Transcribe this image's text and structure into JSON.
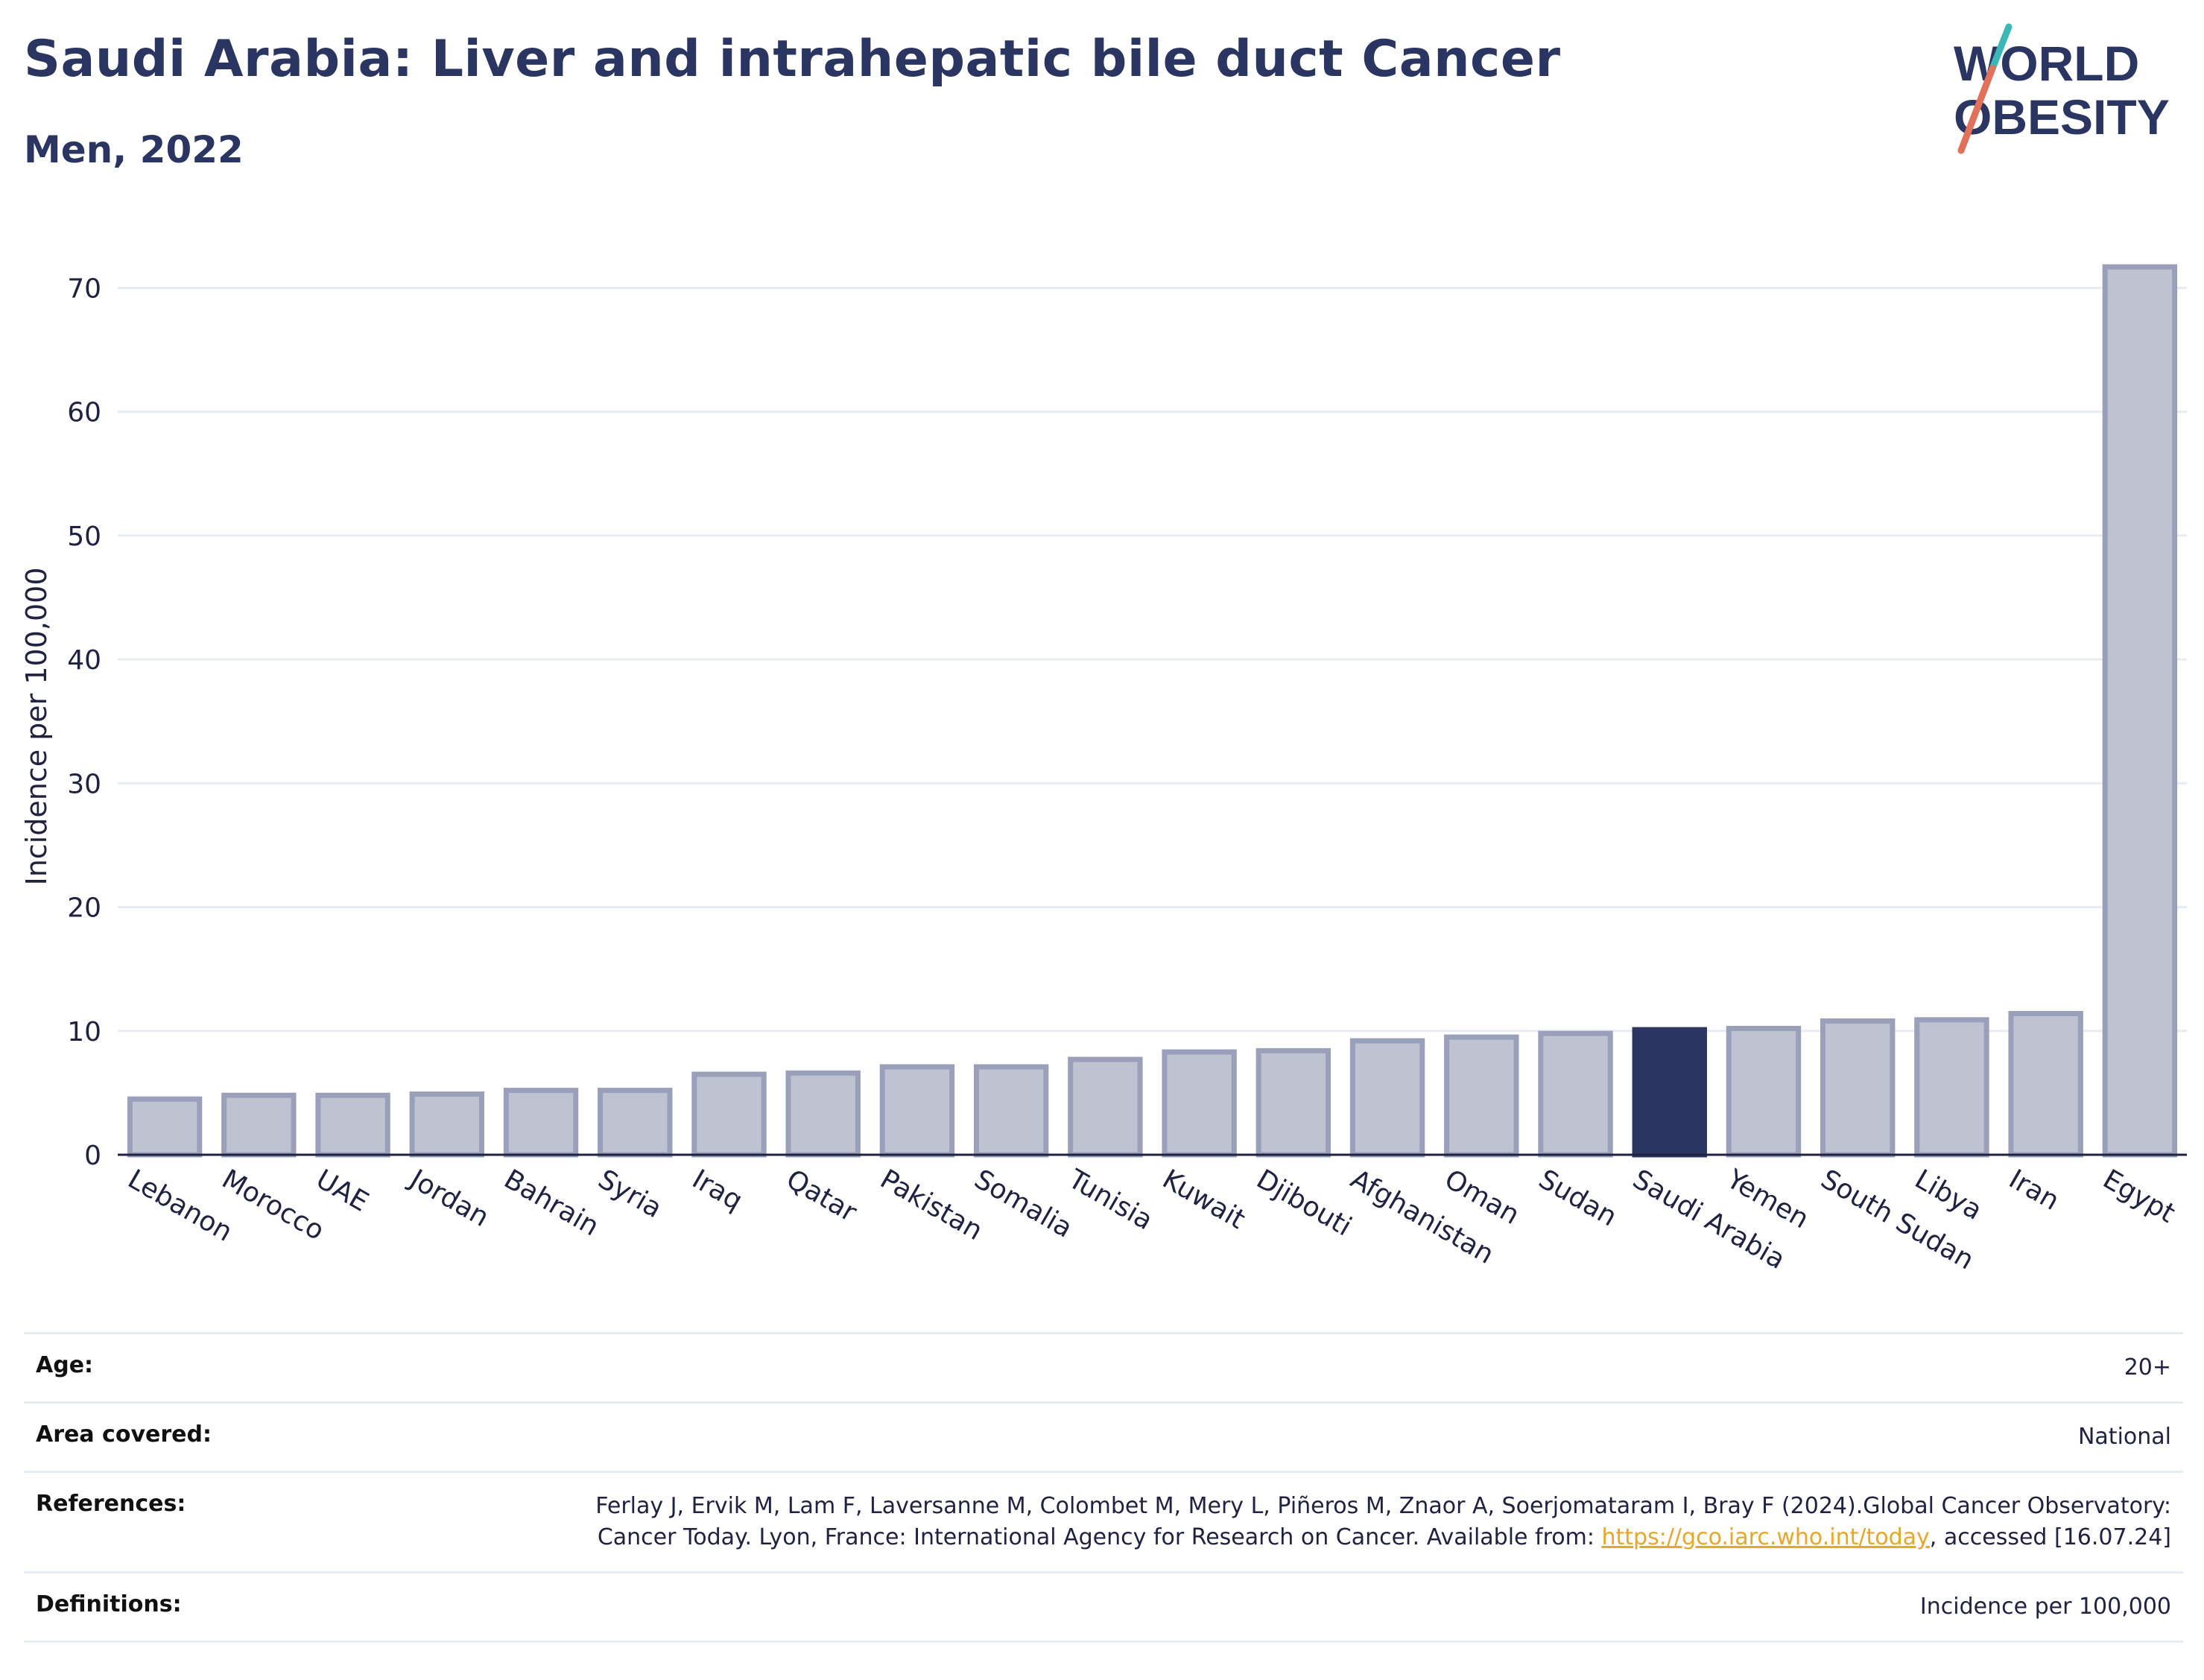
{
  "header": {
    "title": "Saudi Arabia: Liver and intrahepatic bile duct Cancer",
    "subtitle": "Men, 2022"
  },
  "logo": {
    "line1": "WORLD",
    "line2": "OBESITY"
  },
  "chart_data": {
    "type": "bar",
    "ylabel": "Incidence per 100,000",
    "ylim": [
      0,
      74
    ],
    "yticks": [
      0,
      10,
      20,
      30,
      40,
      50,
      60,
      70
    ],
    "grid": true,
    "highlight": "Saudi Arabia",
    "colors": {
      "bar": "#bfc2d1",
      "bar_edge": "#9ba0ba",
      "highlight": "#2a3561"
    },
    "categories": [
      "Lebanon",
      "Morocco",
      "UAE",
      "Jordan",
      "Bahrain",
      "Syria",
      "Iraq",
      "Qatar",
      "Pakistan",
      "Somalia",
      "Tunisia",
      "Kuwait",
      "Djibouti",
      "Afghanistan",
      "Oman",
      "Sudan",
      "Saudi Arabia",
      "Yemen",
      "South Sudan",
      "Libya",
      "Iran",
      "Egypt"
    ],
    "values": [
      4.5,
      4.8,
      4.8,
      4.9,
      5.2,
      5.2,
      6.5,
      6.6,
      7.1,
      7.1,
      7.7,
      8.3,
      8.4,
      9.2,
      9.5,
      9.8,
      10.1,
      10.2,
      10.8,
      10.9,
      11.4,
      71.7
    ]
  },
  "meta": {
    "age_label": "Age:",
    "age_value": "20+",
    "area_label": "Area covered:",
    "area_value": "National",
    "references_label": "References:",
    "references_text_1": "Ferlay J, Ervik M, Lam F, Laversanne M, Colombet M, Mery L, Piñeros M, Znaor A, Soerjomataram I, Bray F (2024).Global Cancer Observatory: Cancer Today. Lyon, France: International Agency for Research on Cancer. Available from: ",
    "references_link": "https://gco.iarc.who.int/today",
    "references_text_2": ", accessed [16.07.24]",
    "definitions_label": "Definitions:",
    "definitions_value": "Incidence per 100,000"
  }
}
